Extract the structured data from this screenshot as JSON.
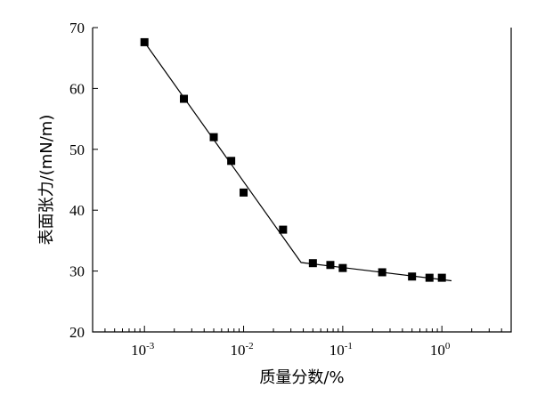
{
  "chart_data": {
    "type": "scatter",
    "xlabel": "质量分数/%",
    "ylabel": "表面张力/(mN/m)",
    "x_scale": "log",
    "xlim": [
      0.0003,
      5
    ],
    "ylim": [
      20,
      70
    ],
    "x_ticks": [
      {
        "value": 0.001,
        "base": "10",
        "exp": "-3"
      },
      {
        "value": 0.01,
        "base": "10",
        "exp": "-2"
      },
      {
        "value": 0.1,
        "base": "10",
        "exp": "-1"
      },
      {
        "value": 1,
        "base": "10",
        "exp": "0"
      }
    ],
    "y_ticks": [
      20,
      30,
      40,
      50,
      60,
      70
    ],
    "points": [
      {
        "x": 0.001,
        "y": 67.6
      },
      {
        "x": 0.0025,
        "y": 58.3
      },
      {
        "x": 0.005,
        "y": 52.0
      },
      {
        "x": 0.0075,
        "y": 48.1
      },
      {
        "x": 0.01,
        "y": 42.9
      },
      {
        "x": 0.025,
        "y": 36.8
      },
      {
        "x": 0.05,
        "y": 31.3
      },
      {
        "x": 0.075,
        "y": 31.0
      },
      {
        "x": 0.1,
        "y": 30.5
      },
      {
        "x": 0.25,
        "y": 29.8
      },
      {
        "x": 0.5,
        "y": 29.1
      },
      {
        "x": 0.75,
        "y": 28.9
      },
      {
        "x": 1.0,
        "y": 28.9
      }
    ],
    "fit_line": [
      {
        "x": 0.001,
        "y": 67.6
      },
      {
        "x": 0.038,
        "y": 31.4
      },
      {
        "x": 1.25,
        "y": 28.4
      }
    ],
    "grid": false,
    "marker": "square",
    "color": "#000000"
  }
}
